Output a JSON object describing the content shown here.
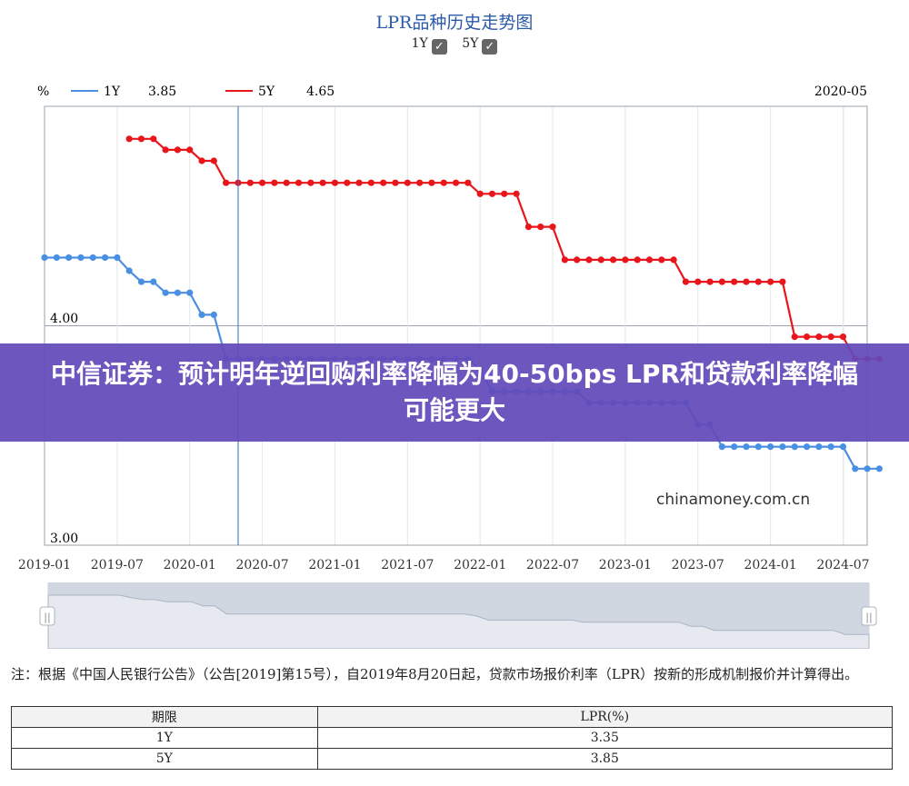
{
  "page": {
    "title": "LPR品种历史走势图",
    "toggles": [
      {
        "label": "1Y",
        "checked": true
      },
      {
        "label": "5Y",
        "checked": true
      }
    ],
    "banner": "中信证券：预计明年逆回购利率降幅为40-50bps LPR和贷款利率降幅可能更大",
    "watermark": "chinamoney.com.cn",
    "note": "注：根据《中国人民银行公告》（公告[2019]第15号），自2019年8月20日起，贷款市场报价利率（LPR）按新的形成机制报价并计算得出。",
    "table": {
      "headers": [
        "期限",
        "LPR(%)"
      ],
      "rows": [
        [
          "1Y",
          "3.35"
        ],
        [
          "5Y",
          "3.85"
        ]
      ]
    }
  },
  "chart_data": {
    "type": "line",
    "title": "LPR品种历史走势图",
    "ylabel": "%",
    "y_tick_labels": [
      "4.00",
      "3.00"
    ],
    "x_tick_labels": [
      "2019-01",
      "2019-07",
      "2020-01",
      "2020-07",
      "2021-01",
      "2021-07",
      "2022-01",
      "2022-07",
      "2023-01",
      "2023-07",
      "2024-01",
      "2024-07"
    ],
    "cursor": {
      "date": "2020-05",
      "values": {
        "1Y": "3.85",
        "5Y": "4.65"
      }
    },
    "grid": true,
    "colors": {
      "1Y": "#4a90e2",
      "5Y": "#e8151b"
    },
    "series": [
      {
        "name": "1Y",
        "start": "2019-01",
        "values": [
          4.31,
          4.31,
          4.31,
          4.31,
          4.31,
          4.31,
          4.31,
          4.25,
          4.2,
          4.2,
          4.15,
          4.15,
          4.15,
          4.05,
          4.05,
          3.85,
          3.85,
          3.85,
          3.85,
          3.85,
          3.85,
          3.85,
          3.85,
          3.85,
          3.85,
          3.85,
          3.85,
          3.85,
          3.85,
          3.85,
          3.85,
          3.85,
          3.85,
          3.85,
          3.85,
          3.85,
          3.8,
          3.7,
          3.7,
          3.7,
          3.7,
          3.7,
          3.7,
          3.7,
          3.7,
          3.65,
          3.65,
          3.65,
          3.65,
          3.65,
          3.65,
          3.65,
          3.65,
          3.65,
          3.55,
          3.55,
          3.45,
          3.45,
          3.45,
          3.45,
          3.45,
          3.45,
          3.45,
          3.45,
          3.45,
          3.45,
          3.45,
          3.35,
          3.35,
          3.35
        ]
      },
      {
        "name": "5Y",
        "start": "2019-08",
        "values": [
          4.85,
          4.85,
          4.85,
          4.8,
          4.8,
          4.8,
          4.75,
          4.75,
          4.65,
          4.65,
          4.65,
          4.65,
          4.65,
          4.65,
          4.65,
          4.65,
          4.65,
          4.65,
          4.65,
          4.65,
          4.65,
          4.65,
          4.65,
          4.65,
          4.65,
          4.65,
          4.65,
          4.65,
          4.65,
          4.6,
          4.6,
          4.6,
          4.6,
          4.45,
          4.45,
          4.45,
          4.3,
          4.3,
          4.3,
          4.3,
          4.3,
          4.3,
          4.3,
          4.3,
          4.3,
          4.3,
          4.2,
          4.2,
          4.2,
          4.2,
          4.2,
          4.2,
          4.2,
          4.2,
          4.2,
          3.95,
          3.95,
          3.95,
          3.95,
          3.95,
          3.85,
          3.85,
          3.85
        ]
      }
    ]
  }
}
